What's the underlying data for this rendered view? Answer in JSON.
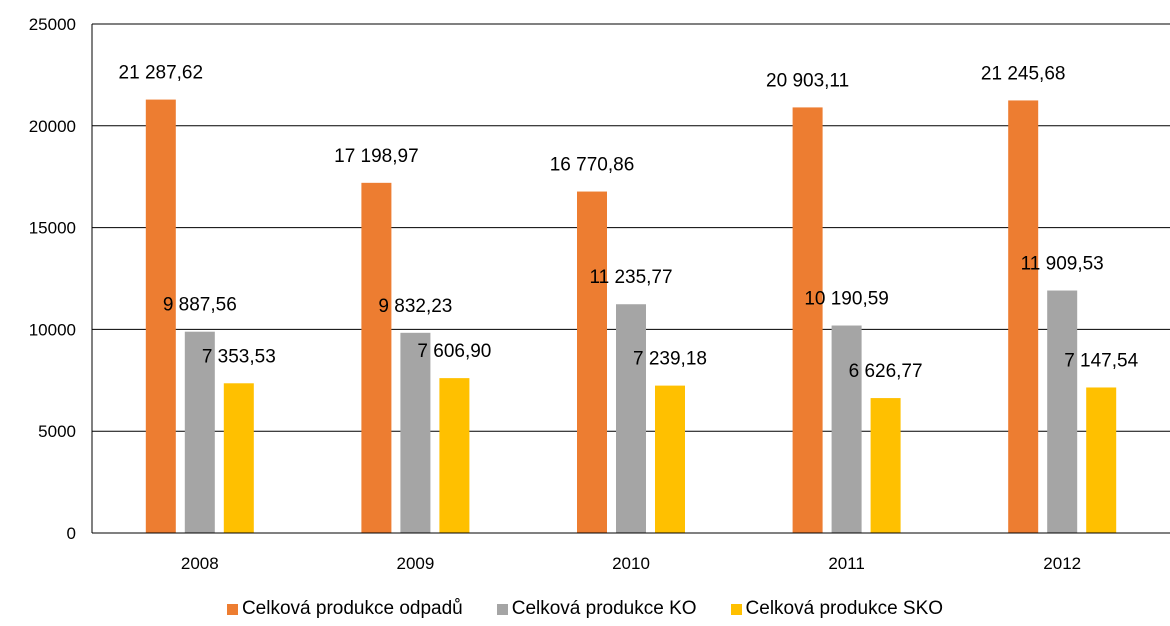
{
  "chart_data": {
    "type": "bar",
    "categories": [
      "2008",
      "2009",
      "2010",
      "2011",
      "2012"
    ],
    "series": [
      {
        "name": "Celková produkce odpadů",
        "color": "#ED7D31",
        "values": [
          21287.62,
          17198.97,
          16770.86,
          20903.11,
          21245.68
        ],
        "labels": [
          "21 287,62",
          "17 198,97",
          "16 770,86",
          "20 903,11",
          "21 245,68"
        ]
      },
      {
        "name": "Celková produkce KO",
        "color": "#A5A5A5",
        "values": [
          9887.56,
          9832.23,
          11235.77,
          10190.59,
          11909.53
        ],
        "labels": [
          "9 887,56",
          "9 832,23",
          "11 235,77",
          "10 190,59",
          "11 909,53"
        ]
      },
      {
        "name": "Celková produkce SKO",
        "color": "#FFC000",
        "values": [
          7353.53,
          7606.9,
          7239.18,
          6626.77,
          7147.54
        ],
        "labels": [
          "7 353,53",
          "7 606,90",
          "7 239,18",
          "6 626,77",
          "7 147,54"
        ]
      }
    ],
    "ylim": [
      0,
      25000
    ],
    "yticks": [
      "0",
      "5000",
      "10000",
      "15000",
      "20000",
      "25000"
    ],
    "grid": true,
    "legend_position": "bottom"
  }
}
